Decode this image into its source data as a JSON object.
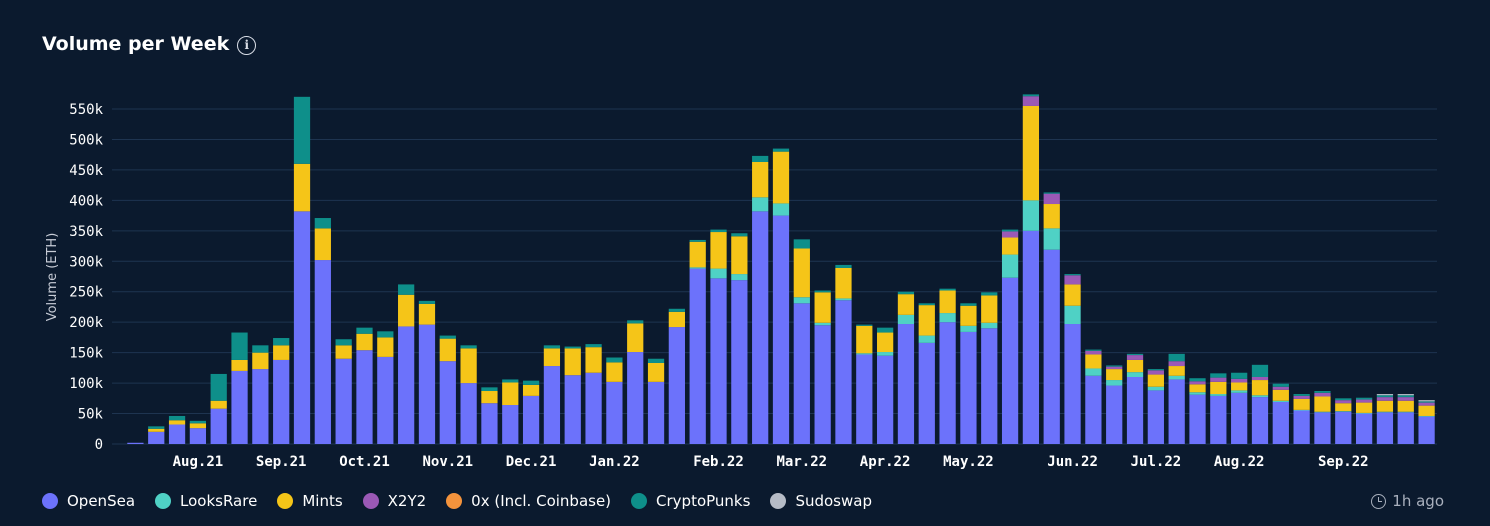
{
  "header": {
    "title": "Volume per Week"
  },
  "updated": {
    "text": "1h ago"
  },
  "chart_data": {
    "type": "bar",
    "stacked": true,
    "title": "Volume per Week",
    "xlabel": "",
    "ylabel": "Volume (ETH)",
    "ylim": [
      0,
      550000
    ],
    "y_ticks": [
      {
        "value": 0,
        "label": "0"
      },
      {
        "value": 50000,
        "label": "50k"
      },
      {
        "value": 100000,
        "label": "100k"
      },
      {
        "value": 150000,
        "label": "150k"
      },
      {
        "value": 200000,
        "label": "200k"
      },
      {
        "value": 250000,
        "label": "250k"
      },
      {
        "value": 300000,
        "label": "300k"
      },
      {
        "value": 350000,
        "label": "350k"
      },
      {
        "value": 400000,
        "label": "400k"
      },
      {
        "value": 450000,
        "label": "450k"
      },
      {
        "value": 500000,
        "label": "500k"
      },
      {
        "value": 550000,
        "label": "550k"
      }
    ],
    "x_ticks": [
      {
        "index": 3,
        "label": "Aug.21"
      },
      {
        "index": 7,
        "label": "Sep.21"
      },
      {
        "index": 11,
        "label": "Oct.21"
      },
      {
        "index": 15,
        "label": "Nov.21"
      },
      {
        "index": 19,
        "label": "Dec.21"
      },
      {
        "index": 23,
        "label": "Jan.22"
      },
      {
        "index": 28,
        "label": "Feb.22"
      },
      {
        "index": 32,
        "label": "Mar.22"
      },
      {
        "index": 36,
        "label": "Apr.22"
      },
      {
        "index": 40,
        "label": "May.22"
      },
      {
        "index": 45,
        "label": "Jun.22"
      },
      {
        "index": 49,
        "label": "Jul.22"
      },
      {
        "index": 53,
        "label": "Aug.22"
      },
      {
        "index": 58,
        "label": "Sep.22"
      }
    ],
    "grid": true,
    "legend_position": "bottom-left",
    "series": [
      {
        "name": "OpenSea",
        "color": "#6c72fb",
        "values": [
          2000,
          20000,
          32000,
          26000,
          58000,
          120000,
          123000,
          138000,
          382000,
          302000,
          140000,
          154000,
          143000,
          193000,
          196000,
          136000,
          100000,
          67000,
          64000,
          79000,
          128000,
          113000,
          117000,
          102000,
          151000,
          102000,
          192000,
          288000,
          272000,
          269000,
          382000,
          375000,
          231000,
          195000,
          236000,
          147000,
          145000,
          197000,
          166000,
          200000,
          184000,
          190000,
          273000,
          350000,
          319000,
          197000,
          112000,
          96000,
          110000,
          88000,
          106000,
          81000,
          79000,
          84000,
          77000,
          69000,
          55000,
          52000,
          53000,
          50000,
          52000,
          52000,
          45000
        ]
      },
      {
        "name": "LooksRare",
        "color": "#4fd1c5",
        "values": [
          0,
          0,
          0,
          0,
          0,
          0,
          0,
          0,
          0,
          0,
          0,
          0,
          0,
          0,
          0,
          0,
          0,
          0,
          0,
          0,
          0,
          0,
          0,
          0,
          0,
          0,
          0,
          2000,
          16000,
          10000,
          23000,
          20000,
          10000,
          4000,
          3000,
          2000,
          6000,
          15000,
          12000,
          15000,
          10000,
          9000,
          38000,
          50000,
          35000,
          30000,
          12000,
          9000,
          8000,
          6000,
          6000,
          4000,
          3000,
          4000,
          3000,
          2000,
          1000,
          1000,
          1000,
          1000,
          1000,
          1000,
          1000
        ]
      },
      {
        "name": "Mints",
        "color": "#f5c518",
        "values": [
          0,
          5000,
          7000,
          8000,
          13000,
          18000,
          27000,
          24000,
          78000,
          52000,
          22000,
          27000,
          32000,
          52000,
          34000,
          37000,
          57000,
          20000,
          37000,
          18000,
          29000,
          44000,
          42000,
          32000,
          47000,
          31000,
          25000,
          42000,
          60000,
          62000,
          58000,
          85000,
          80000,
          50000,
          50000,
          45000,
          32000,
          34000,
          50000,
          37000,
          33000,
          45000,
          28000,
          155000,
          40000,
          35000,
          23000,
          18000,
          20000,
          20000,
          16000,
          13000,
          20000,
          13000,
          25000,
          18000,
          18000,
          25000,
          13000,
          17000,
          18000,
          18000,
          17000
        ]
      },
      {
        "name": "X2Y2",
        "color": "#9b59b6",
        "values": [
          0,
          0,
          0,
          0,
          0,
          0,
          0,
          0,
          0,
          0,
          0,
          0,
          0,
          0,
          0,
          0,
          0,
          0,
          0,
          0,
          0,
          0,
          0,
          0,
          0,
          0,
          0,
          0,
          0,
          0,
          0,
          0,
          0,
          0,
          0,
          0,
          0,
          0,
          0,
          0,
          0,
          0,
          10000,
          16000,
          17000,
          15000,
          6000,
          4000,
          8000,
          7000,
          8000,
          5000,
          7000,
          6000,
          5000,
          5000,
          5000,
          6000,
          5000,
          5000,
          6000,
          6000,
          5000
        ]
      },
      {
        "name": "0x (Incl. Coinbase)",
        "color": "#f4933c",
        "values": [
          0,
          0,
          0,
          0,
          0,
          0,
          0,
          0,
          0,
          0,
          0,
          0,
          0,
          0,
          0,
          0,
          0,
          0,
          0,
          0,
          0,
          0,
          0,
          0,
          0,
          0,
          0,
          0,
          0,
          0,
          0,
          0,
          0,
          0,
          0,
          0,
          0,
          0,
          0,
          0,
          0,
          0,
          0,
          0,
          0,
          0,
          0,
          0,
          0,
          0,
          0,
          0,
          0,
          0,
          0,
          0,
          0,
          0,
          0,
          0,
          0,
          0,
          0
        ]
      },
      {
        "name": "CryptoPunks",
        "color": "#0e8f8a",
        "values": [
          0,
          4000,
          7000,
          4000,
          44000,
          45000,
          12000,
          12000,
          110000,
          17000,
          10000,
          10000,
          10000,
          17000,
          5000,
          5000,
          5000,
          6000,
          5000,
          7000,
          5000,
          3000,
          5000,
          8000,
          5000,
          7000,
          5000,
          3000,
          4000,
          5000,
          10000,
          5000,
          15000,
          3000,
          5000,
          2000,
          8000,
          4000,
          3000,
          3000,
          4000,
          5000,
          3000,
          3000,
          2000,
          2000,
          2000,
          2000,
          2000,
          2000,
          12000,
          5000,
          7000,
          10000,
          20000,
          5000,
          3000,
          3000,
          3000,
          3000,
          3000,
          3000,
          2000
        ]
      },
      {
        "name": "Sudoswap",
        "color": "#b6bcc7",
        "values": [
          0,
          0,
          0,
          0,
          0,
          0,
          0,
          0,
          0,
          0,
          0,
          0,
          0,
          0,
          0,
          0,
          0,
          0,
          0,
          0,
          0,
          0,
          0,
          0,
          0,
          0,
          0,
          0,
          0,
          0,
          0,
          0,
          0,
          0,
          0,
          0,
          0,
          0,
          0,
          0,
          0,
          0,
          0,
          0,
          0,
          0,
          0,
          0,
          0,
          0,
          0,
          0,
          0,
          0,
          0,
          0,
          0,
          0,
          0,
          0,
          2000,
          2000,
          2000
        ]
      }
    ]
  }
}
